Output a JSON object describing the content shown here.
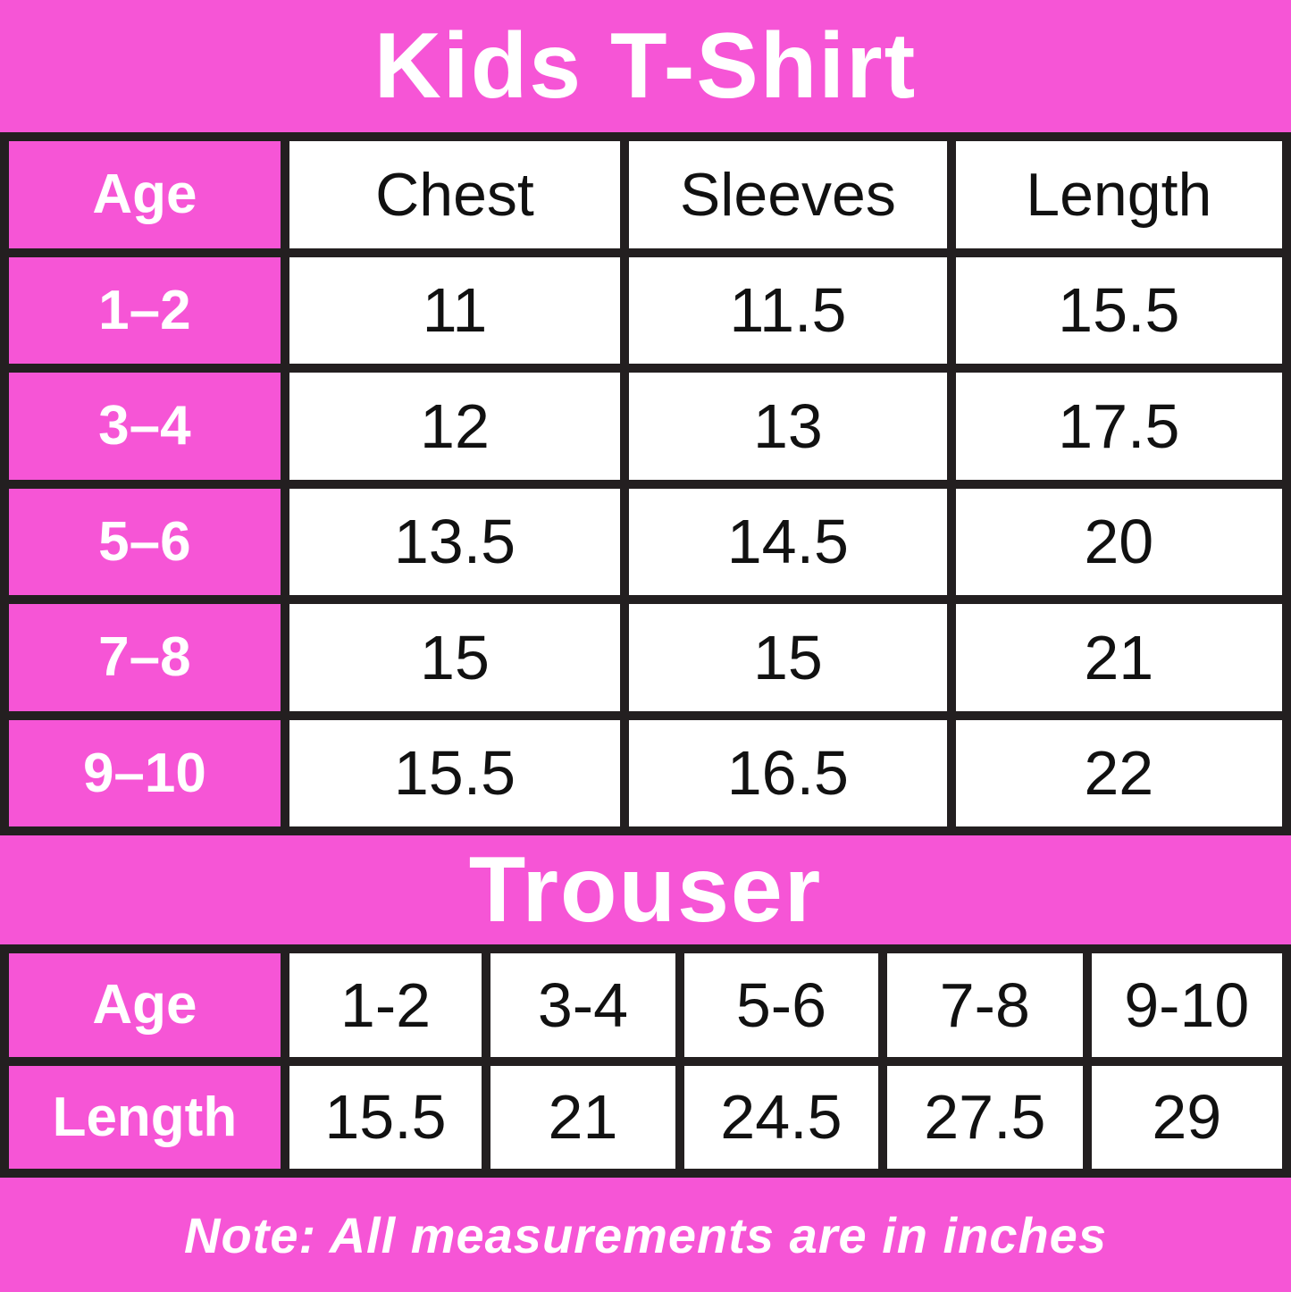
{
  "colors": {
    "background_pink": "#f655d6",
    "border_dark": "#231f20",
    "cell_white": "#ffffff",
    "text_dark": "#111111",
    "text_white": "#ffffff"
  },
  "tshirt": {
    "title": "Kids T-Shirt",
    "headers": {
      "age": "Age",
      "chest": "Chest",
      "sleeves": "Sleeves",
      "length": "Length"
    },
    "rows": [
      {
        "age": "1–2",
        "chest": "11",
        "sleeves": "11.5",
        "length": "15.5"
      },
      {
        "age": "3–4",
        "chest": "12",
        "sleeves": "13",
        "length": "17.5"
      },
      {
        "age": "5–6",
        "chest": "13.5",
        "sleeves": "14.5",
        "length": "20"
      },
      {
        "age": "7–8",
        "chest": "15",
        "sleeves": "15",
        "length": "21"
      },
      {
        "age": "9–10",
        "chest": "15.5",
        "sleeves": "16.5",
        "length": "22"
      }
    ]
  },
  "trouser": {
    "title": "Trouser",
    "age_label": "Age",
    "length_label": "Length",
    "ages": [
      "1-2",
      "3-4",
      "5-6",
      "7-8",
      "9-10"
    ],
    "lengths": [
      "15.5",
      "21",
      "24.5",
      "27.5",
      "29"
    ]
  },
  "note": "Note: All measurements are in inches",
  "chart_data": [
    {
      "type": "table",
      "title": "Kids T-Shirt",
      "columns": [
        "Age",
        "Chest",
        "Sleeves",
        "Length"
      ],
      "rows": [
        [
          "1-2",
          11,
          11.5,
          15.5
        ],
        [
          "3-4",
          12,
          13,
          17.5
        ],
        [
          "5-6",
          13.5,
          14.5,
          20
        ],
        [
          "7-8",
          15,
          15,
          21
        ],
        [
          "9-10",
          15.5,
          16.5,
          22
        ]
      ],
      "units": "inches"
    },
    {
      "type": "table",
      "title": "Trouser",
      "columns": [
        "Age",
        "1-2",
        "3-4",
        "5-6",
        "7-8",
        "9-10"
      ],
      "rows": [
        [
          "Length",
          15.5,
          21,
          24.5,
          27.5,
          29
        ]
      ],
      "units": "inches"
    }
  ]
}
